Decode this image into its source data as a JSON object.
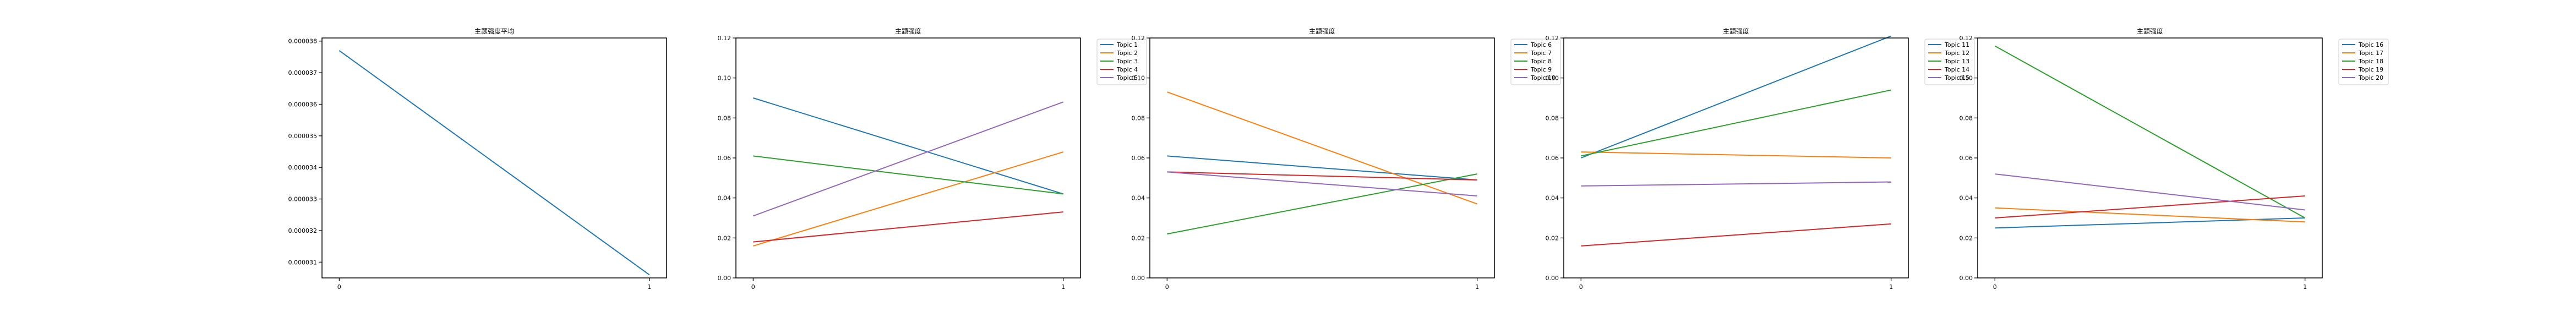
{
  "chart_data": [
    {
      "type": "line",
      "title": "主题强度平均",
      "x": [
        0,
        1
      ],
      "xticks": [
        "0",
        "1"
      ],
      "ylim": [
        3.05e-05,
        3.81e-05
      ],
      "yticks": [
        "0.000031",
        "0.000032",
        "0.000033",
        "0.000034",
        "0.000035",
        "0.000036",
        "0.000037",
        "0.000038"
      ],
      "legend": "none",
      "series": [
        {
          "name": "",
          "color": "#1f77b4",
          "values": [
            3.77e-05,
            3.06e-05
          ]
        }
      ]
    },
    {
      "type": "line",
      "title": "主题强度",
      "x": [
        0,
        1
      ],
      "xticks": [
        "0",
        "1"
      ],
      "ylim": [
        0,
        0.12
      ],
      "yticks": [
        "0.00",
        "0.02",
        "0.04",
        "0.06",
        "0.08",
        "0.10",
        "0.12"
      ],
      "legend": "outside-right",
      "series": [
        {
          "name": "Topic 1",
          "color": "#1f77b4",
          "values": [
            0.09,
            0.042
          ]
        },
        {
          "name": "Topic 2",
          "color": "#ff7f0e",
          "values": [
            0.016,
            0.063
          ]
        },
        {
          "name": "Topic 3",
          "color": "#2ca02c",
          "values": [
            0.061,
            0.042
          ]
        },
        {
          "name": "Topic 4",
          "color": "#d62728",
          "values": [
            0.018,
            0.033
          ]
        },
        {
          "name": "Topic 5",
          "color": "#9467bd",
          "values": [
            0.031,
            0.088
          ]
        }
      ]
    },
    {
      "type": "line",
      "title": "主题强度",
      "x": [
        0,
        1
      ],
      "xticks": [
        "0",
        "1"
      ],
      "ylim": [
        0,
        0.12
      ],
      "yticks": [
        "0.00",
        "0.02",
        "0.04",
        "0.06",
        "0.08",
        "0.10",
        "0.12"
      ],
      "legend": "outside-right",
      "series": [
        {
          "name": "Topic 6",
          "color": "#1f77b4",
          "values": [
            0.061,
            0.049
          ]
        },
        {
          "name": "Topic 7",
          "color": "#ff7f0e",
          "values": [
            0.093,
            0.037
          ]
        },
        {
          "name": "Topic 8",
          "color": "#2ca02c",
          "values": [
            0.022,
            0.052
          ]
        },
        {
          "name": "Topic 9",
          "color": "#d62728",
          "values": [
            0.053,
            0.049
          ]
        },
        {
          "name": "Topic 10",
          "color": "#9467bd",
          "values": [
            0.053,
            0.041
          ]
        }
      ]
    },
    {
      "type": "line",
      "title": "主题强度",
      "x": [
        0,
        1
      ],
      "xticks": [
        "0",
        "1"
      ],
      "ylim": [
        0,
        0.12
      ],
      "yticks": [
        "0.00",
        "0.02",
        "0.04",
        "0.06",
        "0.08",
        "0.10",
        "0.12"
      ],
      "legend": "outside-right",
      "series": [
        {
          "name": "Topic 11",
          "color": "#1f77b4",
          "values": [
            0.06,
            0.121
          ]
        },
        {
          "name": "Topic 12",
          "color": "#ff7f0e",
          "values": [
            0.063,
            0.06
          ]
        },
        {
          "name": "Topic 13",
          "color": "#2ca02c",
          "values": [
            0.061,
            0.094
          ]
        },
        {
          "name": "Topic 14",
          "color": "#d62728",
          "values": [
            0.016,
            0.027
          ]
        },
        {
          "name": "Topic 15",
          "color": "#9467bd",
          "values": [
            0.046,
            0.048
          ]
        }
      ]
    },
    {
      "type": "line",
      "title": "主题强度",
      "x": [
        0,
        1
      ],
      "xticks": [
        "0",
        "1"
      ],
      "ylim": [
        0,
        0.12
      ],
      "yticks": [
        "0.00",
        "0.02",
        "0.04",
        "0.06",
        "0.08",
        "0.10",
        "0.12"
      ],
      "legend": "outside-right",
      "series": [
        {
          "name": "Topic 16",
          "color": "#1f77b4",
          "values": [
            0.025,
            0.03
          ]
        },
        {
          "name": "Topic 17",
          "color": "#ff7f0e",
          "values": [
            0.035,
            0.028
          ]
        },
        {
          "name": "Topic 18",
          "color": "#2ca02c",
          "values": [
            0.116,
            0.03
          ]
        },
        {
          "name": "Topic 19",
          "color": "#d62728",
          "values": [
            0.03,
            0.041
          ]
        },
        {
          "name": "Topic 20",
          "color": "#9467bd",
          "values": [
            0.052,
            0.034
          ]
        }
      ]
    }
  ]
}
